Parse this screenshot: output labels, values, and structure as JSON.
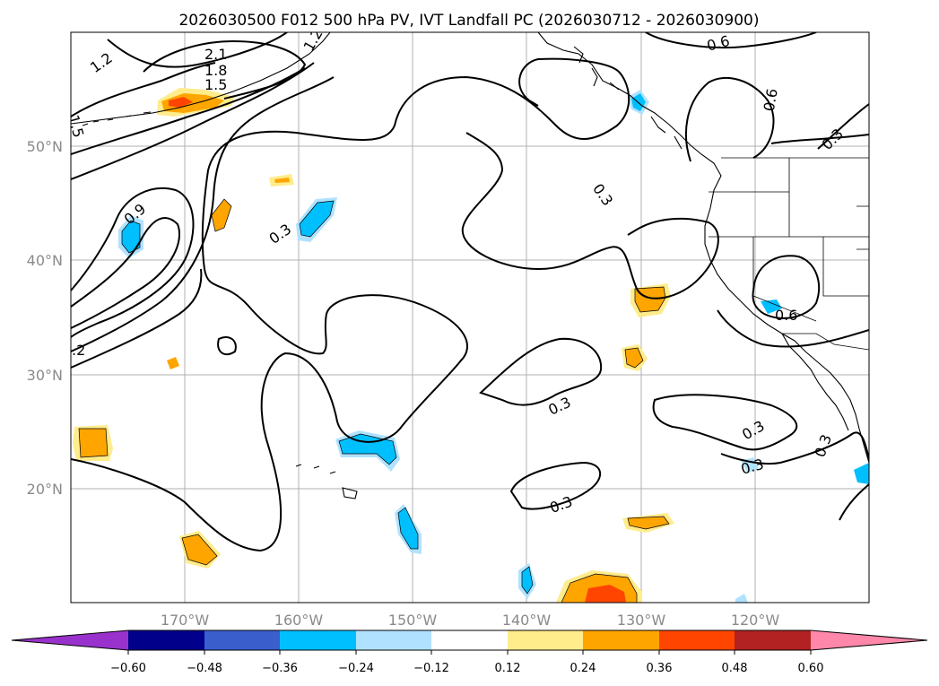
{
  "title": "2026030500 F012 500 hPa PV, IVT Landfall PC (2026030712 - 2026030900)",
  "map": {
    "lon_range": [
      -180,
      -110
    ],
    "lat_range": [
      10,
      60
    ],
    "lon_ticks": [
      {
        "lon": -170,
        "label": "170°W"
      },
      {
        "lon": -160,
        "label": "160°W"
      },
      {
        "lon": -150,
        "label": "150°W"
      },
      {
        "lon": -140,
        "label": "140°W"
      },
      {
        "lon": -130,
        "label": "130°W"
      },
      {
        "lon": -120,
        "label": "120°W"
      }
    ],
    "lat_ticks": [
      {
        "lat": 20,
        "label": "20°N"
      },
      {
        "lat": 30,
        "label": "30°N"
      },
      {
        "lat": 40,
        "label": "40°N"
      },
      {
        "lat": 50,
        "label": "50°N"
      }
    ],
    "grid": true,
    "contour_labels": [
      "2.1",
      "1.8",
      "1.5",
      "1.2",
      "1.2",
      "1.5",
      "0.9",
      ".2",
      "0.3",
      "0.3",
      "0.3",
      "0.3",
      "0.3",
      "0.3",
      "0.3",
      "0.6",
      "0.6",
      "0.6",
      "0.3"
    ]
  },
  "colorbar": {
    "ticks": [
      "−0.60",
      "−0.48",
      "−0.36",
      "−0.24",
      "−0.12",
      "0.12",
      "0.24",
      "0.36",
      "0.48",
      "0.60"
    ],
    "colors": [
      "#9932cc",
      "#00008b",
      "#3a5fcd",
      "#00bfff",
      "#b0e2ff",
      "#ffffff",
      "#ffec8b",
      "#ffa500",
      "#ff4500",
      "#b22222",
      "#ff88aa"
    ]
  }
}
